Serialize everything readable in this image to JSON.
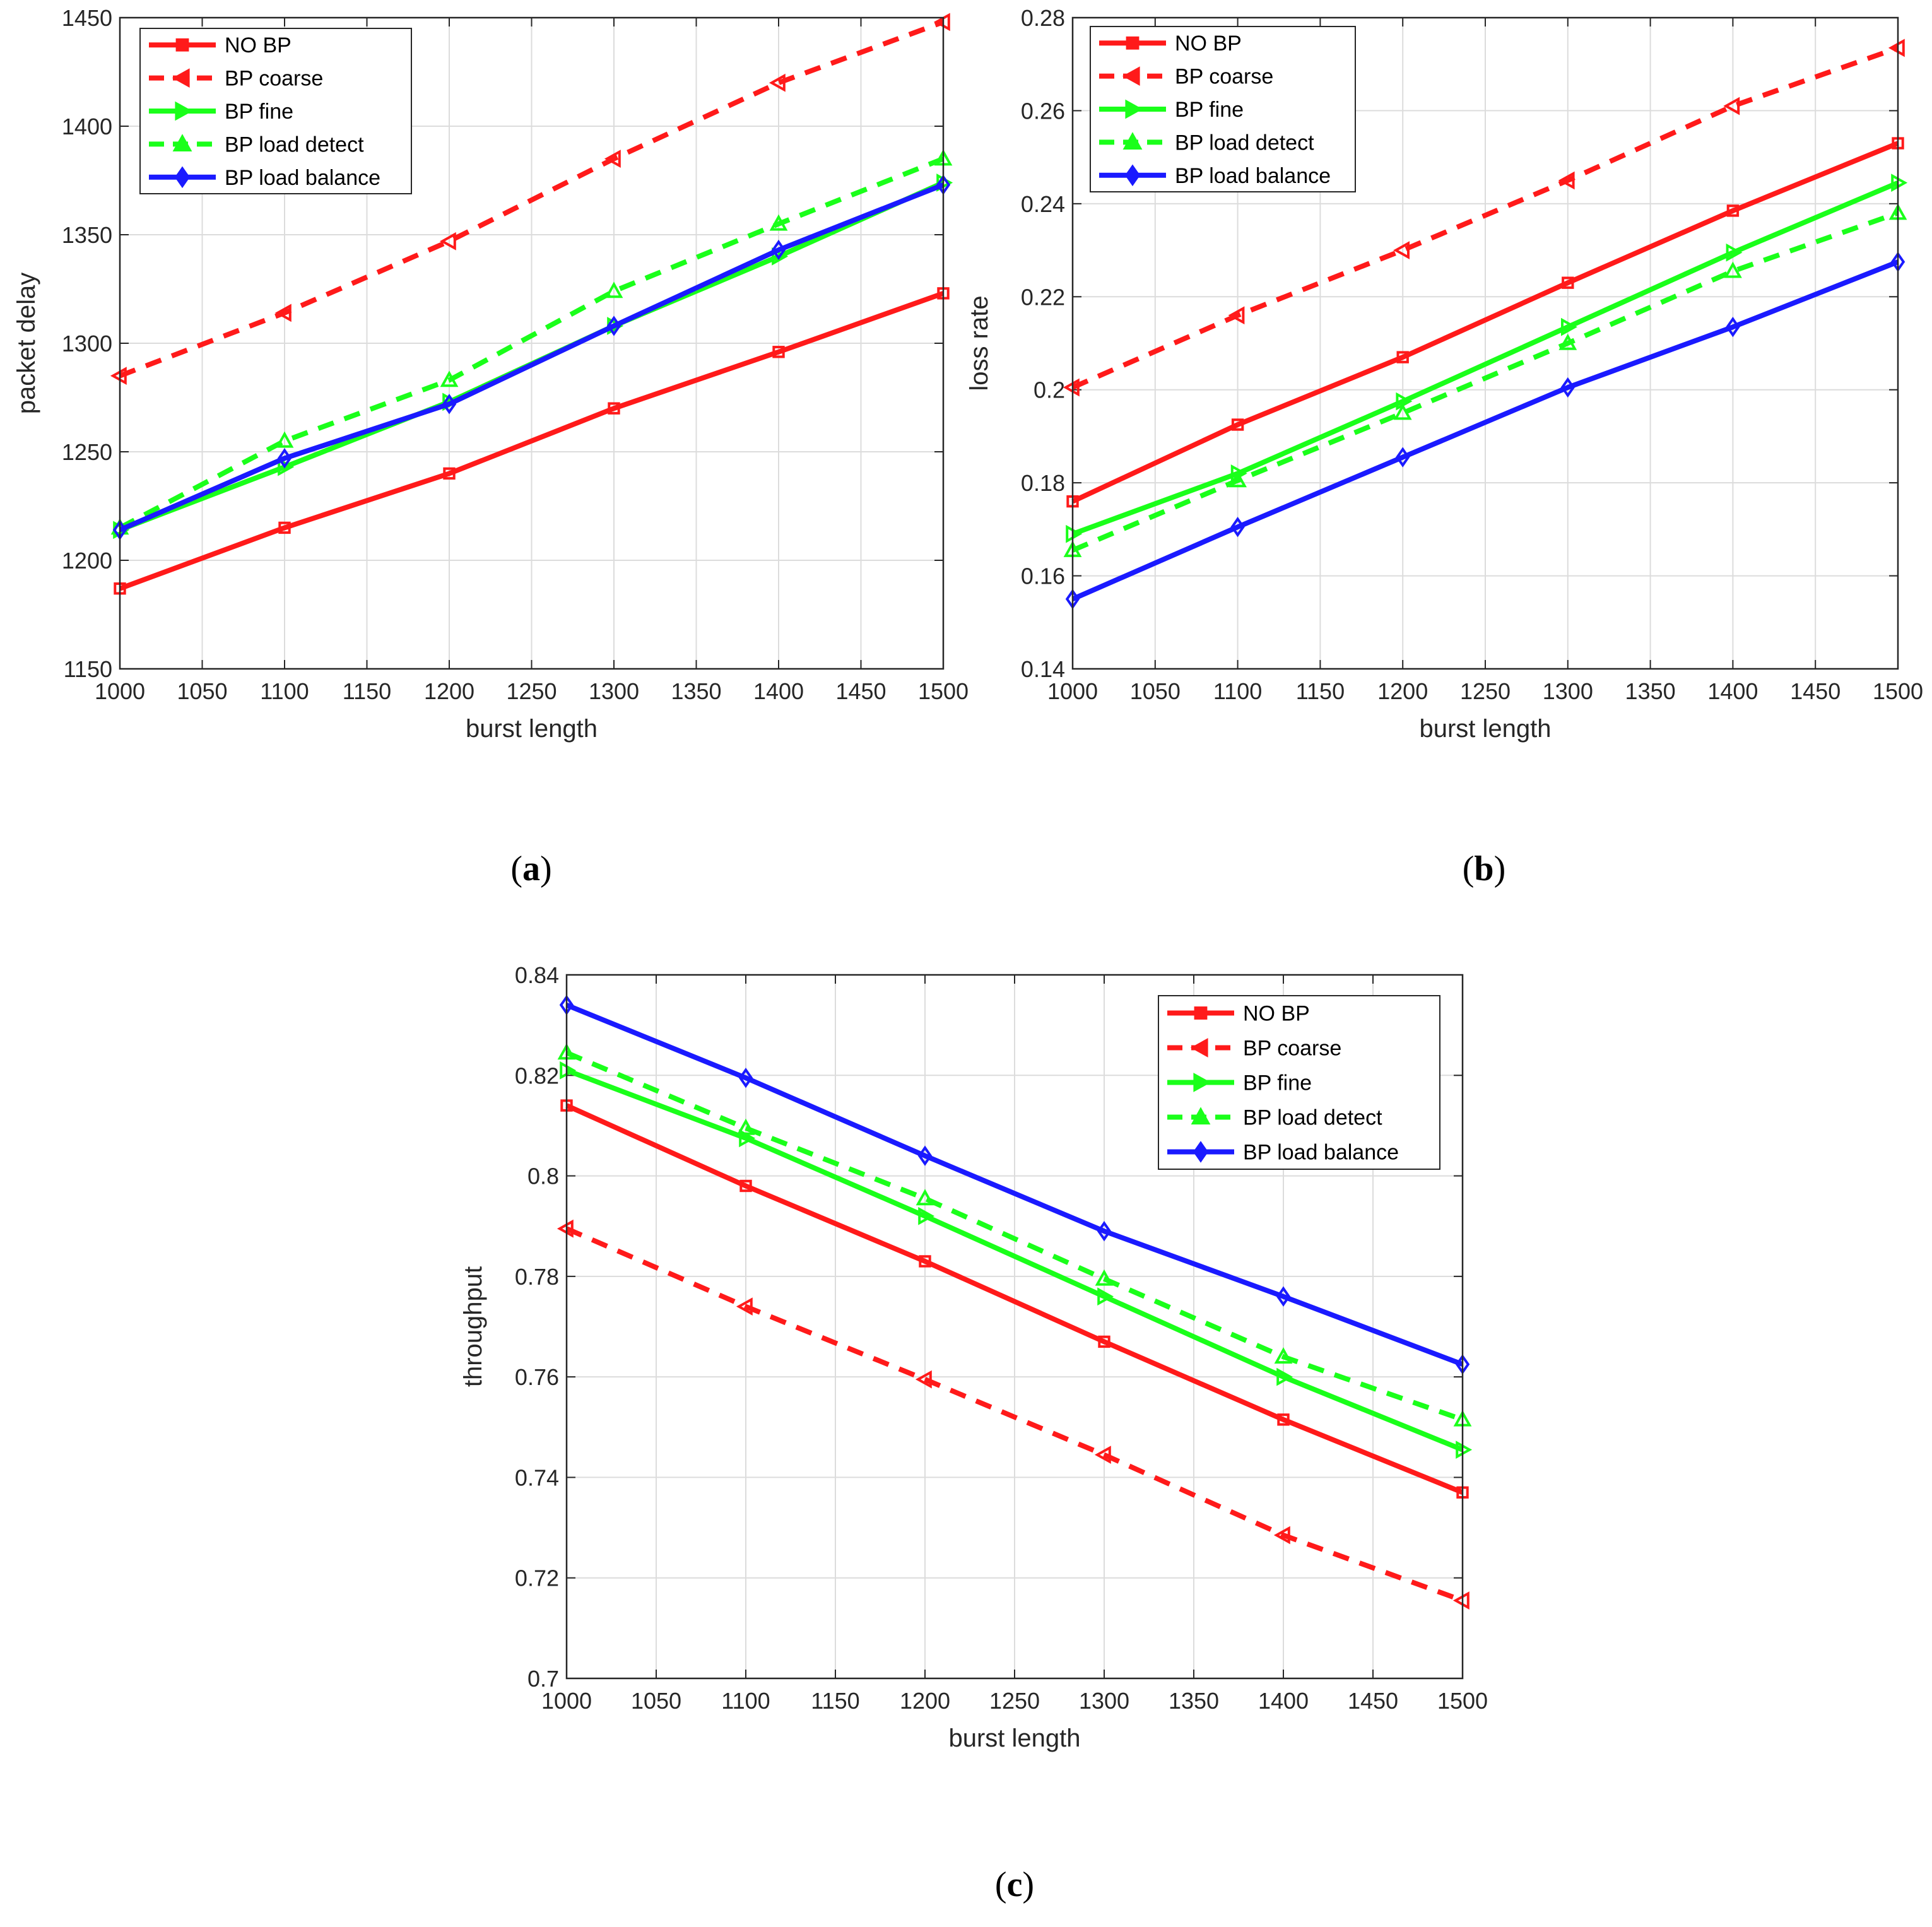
{
  "colors": {
    "red": "#ff1a1a",
    "green": "#1aff1a",
    "blue": "#1a1aff",
    "axis": "#262626",
    "grid": "#dcdcdc"
  },
  "chart_data": [
    {
      "id": "a",
      "caption": "a",
      "type": "line",
      "xlabel": "burst length",
      "ylabel": "packet delay",
      "xlim": [
        1000,
        1500
      ],
      "ylim": [
        1150,
        1450
      ],
      "xticks": [
        1000,
        1050,
        1100,
        1150,
        1200,
        1250,
        1300,
        1350,
        1400,
        1450,
        1500
      ],
      "xtick_labels": [
        "1000",
        "1050",
        "1100",
        "1150",
        "1200",
        "1250",
        "1300",
        "1350",
        "1400",
        "1450",
        "1500"
      ],
      "yticks": [
        1150,
        1200,
        1250,
        1300,
        1350,
        1400,
        1450
      ],
      "ytick_labels": [
        "1150",
        "1200",
        "1250",
        "1300",
        "1350",
        "1400",
        "1450"
      ],
      "grid": true,
      "legend_position": "top-left",
      "x": [
        1000,
        1100,
        1200,
        1300,
        1400,
        1500
      ],
      "series": [
        {
          "name": "NO BP",
          "color": "red",
          "dash": "solid",
          "marker": "square",
          "values": [
            1187,
            1215,
            1240,
            1270,
            1296,
            1323
          ]
        },
        {
          "name": "BP coarse",
          "color": "red",
          "dash": "dashed",
          "marker": "triangle-left",
          "values": [
            1285,
            1314,
            1347,
            1385,
            1420,
            1448
          ]
        },
        {
          "name": "BP fine",
          "color": "green",
          "dash": "solid",
          "marker": "triangle-right",
          "values": [
            1214,
            1243,
            1273,
            1308,
            1340,
            1374
          ]
        },
        {
          "name": "BP load detect",
          "color": "green",
          "dash": "dashed",
          "marker": "triangle-up",
          "values": [
            1215,
            1255,
            1283,
            1324,
            1355,
            1385
          ]
        },
        {
          "name": "BP load balance",
          "color": "blue",
          "dash": "solid",
          "marker": "diamond",
          "values": [
            1214,
            1247,
            1272,
            1308,
            1343,
            1373
          ]
        }
      ]
    },
    {
      "id": "b",
      "caption": "b",
      "type": "line",
      "xlabel": "burst length",
      "ylabel": "loss rate",
      "xlim": [
        1000,
        1500
      ],
      "ylim": [
        0.14,
        0.28
      ],
      "xticks": [
        1000,
        1050,
        1100,
        1150,
        1200,
        1250,
        1300,
        1350,
        1400,
        1450,
        1500
      ],
      "xtick_labels": [
        "1000",
        "1050",
        "1100",
        "1150",
        "1200",
        "1250",
        "1300",
        "1350",
        "1400",
        "1450",
        "1500"
      ],
      "yticks": [
        0.14,
        0.16,
        0.18,
        0.2,
        0.22,
        0.24,
        0.26,
        0.28
      ],
      "ytick_labels": [
        "0.14",
        "0.16",
        "0.18",
        "0.2",
        "0.22",
        "0.24",
        "0.26",
        "0.28"
      ],
      "grid": true,
      "legend_position": "top-left",
      "x": [
        1000,
        1100,
        1200,
        1300,
        1400,
        1500
      ],
      "series": [
        {
          "name": "NO BP",
          "color": "red",
          "dash": "solid",
          "marker": "square",
          "values": [
            0.176,
            0.1925,
            0.207,
            0.223,
            0.2385,
            0.253
          ]
        },
        {
          "name": "BP coarse",
          "color": "red",
          "dash": "dashed",
          "marker": "triangle-left",
          "values": [
            0.2005,
            0.216,
            0.23,
            0.245,
            0.261,
            0.2735
          ]
        },
        {
          "name": "BP fine",
          "color": "green",
          "dash": "solid",
          "marker": "triangle-right",
          "values": [
            0.169,
            0.182,
            0.1975,
            0.2135,
            0.2295,
            0.2445
          ]
        },
        {
          "name": "BP load detect",
          "color": "green",
          "dash": "dashed",
          "marker": "triangle-up",
          "values": [
            0.1655,
            0.1805,
            0.195,
            0.21,
            0.2255,
            0.238
          ]
        },
        {
          "name": "BP load balance",
          "color": "blue",
          "dash": "solid",
          "marker": "diamond",
          "values": [
            0.155,
            0.1705,
            0.1855,
            0.2005,
            0.2135,
            0.2275
          ]
        }
      ]
    },
    {
      "id": "c",
      "caption": "c",
      "type": "line",
      "xlabel": "burst length",
      "ylabel": "throughput",
      "xlim": [
        1000,
        1500
      ],
      "ylim": [
        0.7,
        0.84
      ],
      "xticks": [
        1000,
        1050,
        1100,
        1150,
        1200,
        1250,
        1300,
        1350,
        1400,
        1450,
        1500
      ],
      "xtick_labels": [
        "1000",
        "1050",
        "1100",
        "1150",
        "1200",
        "1250",
        "1300",
        "1350",
        "1400",
        "1450",
        "1500"
      ],
      "yticks": [
        0.7,
        0.72,
        0.74,
        0.76,
        0.78,
        0.8,
        0.82,
        0.84
      ],
      "ytick_labels": [
        "0.7",
        "0.72",
        "0.74",
        "0.76",
        "0.78",
        "0.8",
        "0.82",
        "0.84"
      ],
      "grid": true,
      "legend_position": "top-right",
      "x": [
        1000,
        1100,
        1200,
        1300,
        1400,
        1500
      ],
      "series": [
        {
          "name": "NO BP",
          "color": "red",
          "dash": "solid",
          "marker": "square",
          "values": [
            0.814,
            0.798,
            0.783,
            0.767,
            0.7515,
            0.737
          ]
        },
        {
          "name": "BP coarse",
          "color": "red",
          "dash": "dashed",
          "marker": "triangle-left",
          "values": [
            0.7895,
            0.774,
            0.7595,
            0.7445,
            0.7285,
            0.7155
          ]
        },
        {
          "name": "BP fine",
          "color": "green",
          "dash": "solid",
          "marker": "triangle-right",
          "values": [
            0.821,
            0.8075,
            0.792,
            0.776,
            0.76,
            0.7455
          ]
        },
        {
          "name": "BP load detect",
          "color": "green",
          "dash": "dashed",
          "marker": "triangle-up",
          "values": [
            0.8245,
            0.8095,
            0.7955,
            0.7795,
            0.764,
            0.7515
          ]
        },
        {
          "name": "BP load balance",
          "color": "blue",
          "dash": "solid",
          "marker": "diamond",
          "values": [
            0.834,
            0.8195,
            0.804,
            0.789,
            0.776,
            0.7625
          ]
        }
      ]
    }
  ]
}
